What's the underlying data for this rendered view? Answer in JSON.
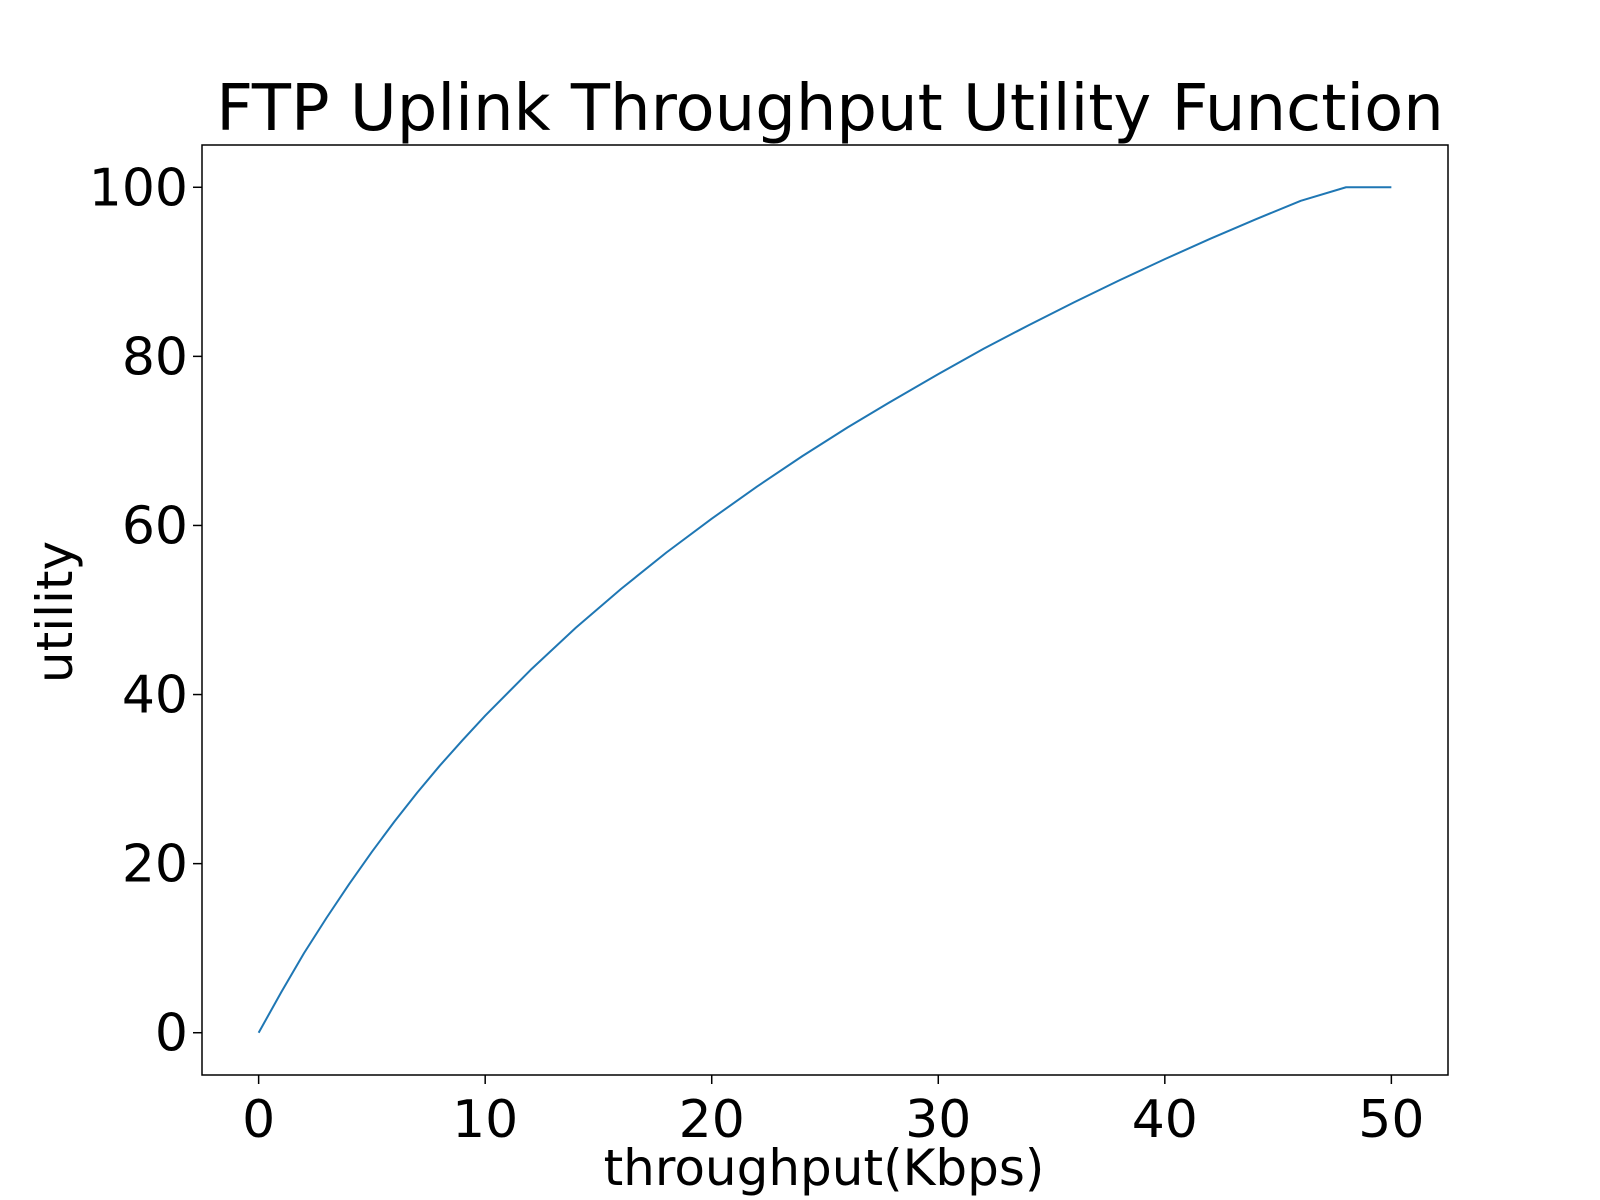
{
  "chart_data": {
    "type": "line",
    "title": "FTP Uplink Throughput Utility Function",
    "xlabel": "throughput(Kbps)",
    "ylabel": "utility",
    "xlim": [
      -2.5,
      52.5
    ],
    "ylim": [
      -5,
      105
    ],
    "xticks": [
      0,
      10,
      20,
      30,
      40,
      50
    ],
    "yticks": [
      0,
      20,
      40,
      60,
      80,
      100
    ],
    "grid": false,
    "legend": "none",
    "series": [
      {
        "color": "#1f77b4",
        "x": [
          0,
          1,
          2,
          3,
          4,
          5,
          6,
          7,
          8,
          9,
          10,
          12,
          14,
          16,
          18,
          20,
          22,
          24,
          26,
          28,
          30,
          32,
          34,
          36,
          38,
          40,
          42,
          44,
          46,
          48,
          50
        ],
        "y": [
          0,
          4.8,
          9.4,
          13.6,
          17.6,
          21.4,
          25.0,
          28.4,
          31.6,
          34.6,
          37.5,
          42.9,
          47.9,
          52.5,
          56.8,
          60.8,
          64.6,
          68.2,
          71.6,
          74.8,
          77.9,
          80.9,
          83.7,
          86.4,
          89.0,
          91.5,
          93.9,
          96.2,
          98.4,
          100.0,
          100.0
        ]
      }
    ]
  }
}
